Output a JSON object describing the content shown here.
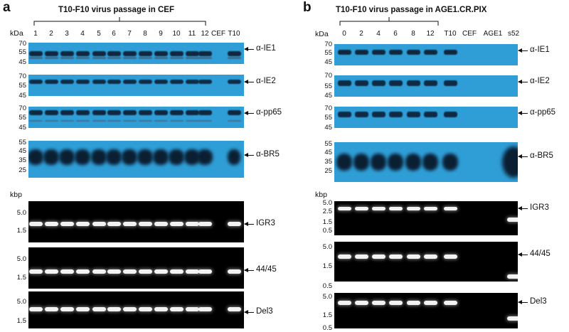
{
  "panels": [
    {
      "label": "a",
      "title": "T10-F10 virus passage in CEF",
      "lanes": [
        "1",
        "2",
        "3",
        "4",
        "5",
        "6",
        "7",
        "8",
        "9",
        "10",
        "11",
        "12",
        "CEF",
        "T10"
      ],
      "kda_label": "kDa",
      "kbp_label": "kbp",
      "western_blots": [
        {
          "antibody": "α-IE1",
          "ticks": [
            "70",
            "55",
            "45"
          ]
        },
        {
          "antibody": "α-IE2",
          "ticks": [
            "70",
            "55",
            "45"
          ]
        },
        {
          "antibody": "α-pp65",
          "ticks": [
            "70",
            "55",
            "45"
          ]
        },
        {
          "antibody": "α-BR5",
          "ticks": [
            "55",
            "45",
            "35",
            "25"
          ]
        }
      ],
      "gels": [
        {
          "target": "IGR3",
          "ticks": [
            "5.0",
            "1.5"
          ]
        },
        {
          "target": "44/45",
          "ticks": [
            "5.0",
            "1.5"
          ]
        },
        {
          "target": "Del3",
          "ticks": [
            "5.0",
            "1.5"
          ]
        }
      ]
    },
    {
      "label": "b",
      "title": "T10-F10 virus passage in AGE1.CR.PIX",
      "lanes": [
        "0",
        "2",
        "4",
        "6",
        "8",
        "12",
        "T10",
        "CEF",
        "AGE1",
        "s52"
      ],
      "kda_label": "kDa",
      "kbp_label": "kbp",
      "western_blots": [
        {
          "antibody": "α-IE1",
          "ticks": [
            "70",
            "55",
            "45"
          ]
        },
        {
          "antibody": "α-IE2",
          "ticks": [
            "70",
            "55",
            "45"
          ]
        },
        {
          "antibody": "α-pp65",
          "ticks": [
            "70",
            "55",
            "45"
          ]
        },
        {
          "antibody": "α-BR5",
          "ticks": [
            "55",
            "45",
            "35",
            "25"
          ]
        }
      ],
      "gels": [
        {
          "target": "IGR3",
          "ticks": [
            "5.0",
            "2.5",
            "1.5",
            "0.5"
          ]
        },
        {
          "target": "44/45",
          "ticks": [
            "5.0",
            "1.5",
            "0.5"
          ]
        },
        {
          "target": "Del3",
          "ticks": [
            "5.0",
            "1.5",
            "0.5"
          ]
        }
      ]
    }
  ]
}
